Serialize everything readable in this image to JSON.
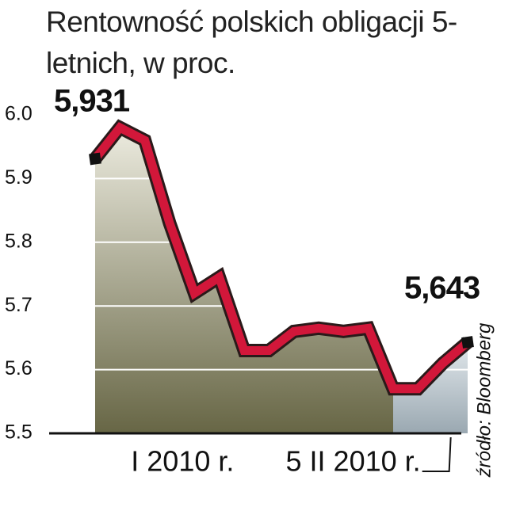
{
  "chart_data": {
    "type": "line",
    "title": "Rentowność polskich obligacji 5-letnich, w proc.",
    "source": "źródło: Bloomberg",
    "categories": [
      null,
      null,
      null,
      null,
      "I 2010 r.",
      null,
      null,
      null,
      null,
      null,
      null,
      null,
      null,
      null,
      "5 II 2010 r.",
      null
    ],
    "series": [
      {
        "name": "Rentowność",
        "color": "#d2173a",
        "values": [
          5.931,
          5.98,
          5.96,
          5.83,
          5.72,
          5.745,
          5.63,
          5.63,
          5.66,
          5.665,
          5.66,
          5.665,
          5.57,
          5.57,
          5.61,
          5.643
        ],
        "value_labels": [
          "5,931",
          null,
          null,
          null,
          null,
          null,
          null,
          null,
          null,
          null,
          null,
          null,
          null,
          null,
          null,
          "5,643"
        ]
      }
    ],
    "ylim": [
      5.5,
      6.0
    ],
    "yticks": [
      5.5,
      5.6,
      5.7,
      5.8,
      5.9,
      {
        "value": 6.0,
        "label": "6.0"
      }
    ],
    "grid": true
  }
}
